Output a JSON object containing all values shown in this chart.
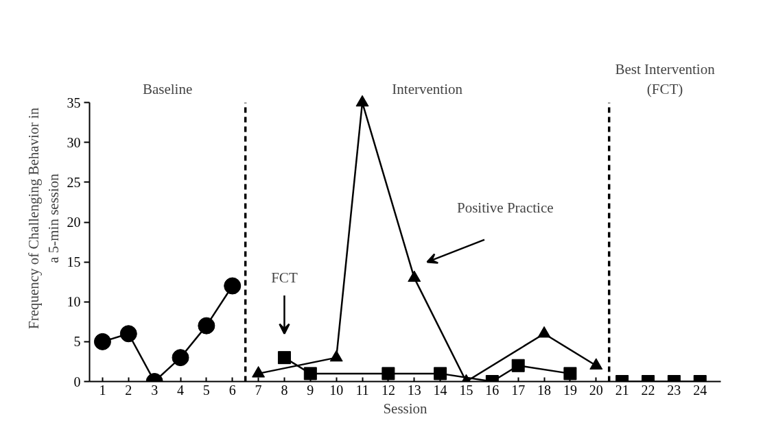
{
  "chart_data": {
    "type": "line",
    "xlabel": "Session",
    "ylabel": "Frequency of Challenging Behavior in\na 5-min session",
    "xlim": [
      0.5,
      24.8
    ],
    "ylim": [
      0,
      35
    ],
    "xticks": [
      1,
      2,
      3,
      4,
      5,
      6,
      7,
      8,
      9,
      10,
      11,
      12,
      13,
      14,
      15,
      16,
      17,
      18,
      19,
      20,
      21,
      22,
      23,
      24
    ],
    "yticks": [
      0,
      5,
      10,
      15,
      20,
      25,
      30,
      35
    ],
    "grid": false,
    "line_style": "solid",
    "series": [
      {
        "color": "#000000",
        "marker": "circle",
        "x": [
          1,
          2,
          3,
          4,
          5,
          6
        ],
        "values": [
          5,
          6,
          0,
          3,
          7,
          12
        ]
      },
      {
        "color": "#000000",
        "marker": "triangle",
        "x": [
          7,
          10,
          11,
          13,
          15,
          18,
          20
        ],
        "values": [
          1,
          3,
          35,
          13,
          0,
          6,
          2
        ]
      },
      {
        "color": "#000000",
        "marker": "square",
        "x": [
          8,
          9,
          12,
          14,
          16,
          17,
          19
        ],
        "values": [
          3,
          1,
          1,
          1,
          0,
          2,
          1
        ]
      },
      {
        "color": "#000000",
        "marker": "square",
        "x": [
          21,
          22,
          23,
          24
        ],
        "values": [
          0,
          0,
          0,
          0
        ]
      }
    ],
    "ref_lines": [
      {
        "axis": "x",
        "value": 6.5,
        "line_style": "dashed",
        "color": "#000000"
      },
      {
        "axis": "x",
        "value": 20.5,
        "line_style": "dashed",
        "color": "#000000"
      }
    ],
    "annotations": [
      "Baseline",
      "Intervention",
      "Best Intervention\n(FCT)",
      "FCT",
      "Positive Practice"
    ]
  }
}
